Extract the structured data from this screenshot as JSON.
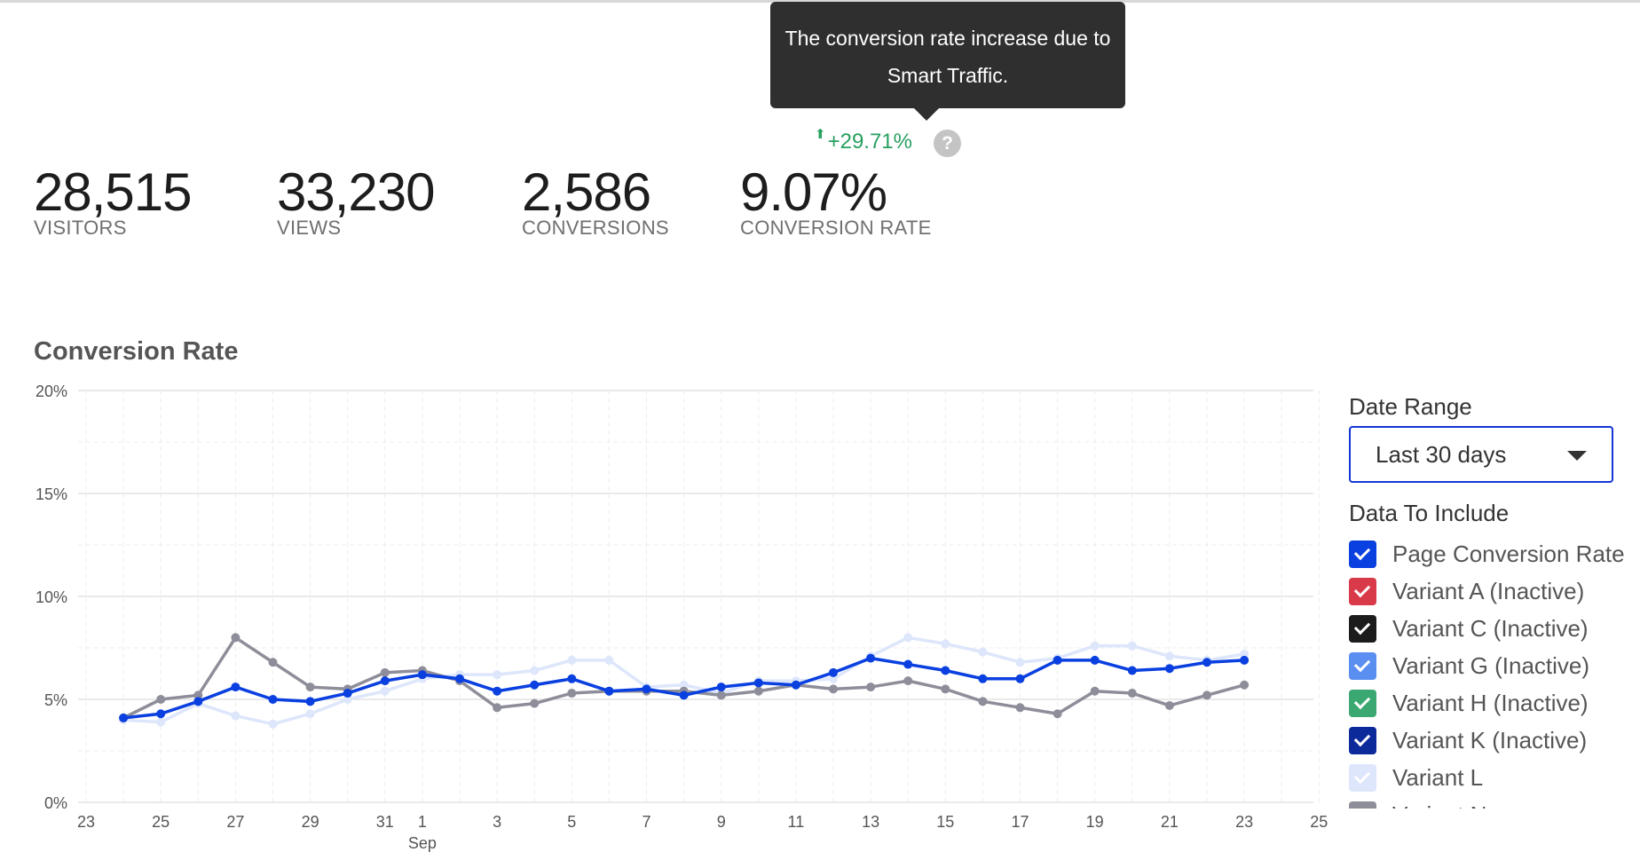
{
  "tooltip": {
    "line1": "The conversion rate increase due to",
    "line2": "Smart Traffic."
  },
  "change": {
    "arrow": "⬆",
    "value": "+29.71%",
    "help": "?"
  },
  "stats": [
    {
      "value": "28,515",
      "label": "VISITORS"
    },
    {
      "value": "33,230",
      "label": "VIEWS"
    },
    {
      "value": "2,586",
      "label": "CONVERSIONS"
    },
    {
      "value": "9.07%",
      "label": "CONVERSION RATE"
    }
  ],
  "chart_title": "Conversion Rate",
  "sidebar": {
    "date_range_label": "Date Range",
    "date_range_value": "Last 30 days",
    "data_label": "Data To Include",
    "items": [
      {
        "label": "Page Conversion Rate",
        "color": "#0a3fe0"
      },
      {
        "label": "Variant A (Inactive)",
        "color": "#d83a4a"
      },
      {
        "label": "Variant C (Inactive)",
        "color": "#1c1c1c"
      },
      {
        "label": "Variant G (Inactive)",
        "color": "#5a8ef0"
      },
      {
        "label": "Variant H (Inactive)",
        "color": "#3aa870"
      },
      {
        "label": "Variant K (Inactive)",
        "color": "#0c2a9a"
      },
      {
        "label": "Variant L",
        "color": "#dde6fb"
      },
      {
        "label": "Variant N",
        "color": "#8e8e9a"
      }
    ]
  },
  "chart_data": {
    "type": "line",
    "title": "Conversion Rate",
    "xlabel": "",
    "ylabel": "",
    "ylim": [
      0,
      20
    ],
    "ytick_labels": [
      "0%",
      "5%",
      "10%",
      "15%",
      "20%"
    ],
    "x_ticks": [
      {
        "day": "23",
        "label": "23"
      },
      {
        "day": "25",
        "label": "25"
      },
      {
        "day": "27",
        "label": "27"
      },
      {
        "day": "29",
        "label": "29"
      },
      {
        "day": "31",
        "label": "31"
      },
      {
        "day": "Sep 1",
        "label": "1",
        "sub": "Sep"
      },
      {
        "day": "Sep 3",
        "label": "3"
      },
      {
        "day": "Sep 5",
        "label": "5"
      },
      {
        "day": "Sep 7",
        "label": "7"
      },
      {
        "day": "Sep 9",
        "label": "9"
      },
      {
        "day": "Sep 11",
        "label": "11"
      },
      {
        "day": "Sep 13",
        "label": "13"
      },
      {
        "day": "Sep 15",
        "label": "15"
      },
      {
        "day": "Sep 17",
        "label": "17"
      },
      {
        "day": "Sep 19",
        "label": "19"
      },
      {
        "day": "Sep 21",
        "label": "21"
      },
      {
        "day": "Sep 23",
        "label": "23"
      },
      {
        "day": "Sep 25",
        "label": "25"
      }
    ],
    "x": [
      "24",
      "25",
      "26",
      "27",
      "28",
      "29",
      "30",
      "31",
      "Sep 1",
      "Sep 2",
      "Sep 3",
      "Sep 4",
      "Sep 5",
      "Sep 6",
      "Sep 7",
      "Sep 8",
      "Sep 9",
      "Sep 10",
      "Sep 11",
      "Sep 12",
      "Sep 13",
      "Sep 14",
      "Sep 15",
      "Sep 16",
      "Sep 17",
      "Sep 18",
      "Sep 19",
      "Sep 20",
      "Sep 21",
      "Sep 22",
      "Sep 23"
    ],
    "series": [
      {
        "name": "Variant L",
        "color": "#dde6fb",
        "values": [
          4.0,
          3.9,
          4.8,
          4.2,
          3.8,
          4.3,
          5.0,
          5.4,
          6.0,
          6.2,
          6.2,
          6.4,
          6.9,
          6.9,
          5.6,
          5.7,
          5.3,
          5.9,
          5.9,
          6.0,
          7.1,
          8.0,
          7.7,
          7.3,
          6.8,
          7.0,
          7.6,
          7.6,
          7.1,
          6.9,
          7.2
        ]
      },
      {
        "name": "Variant N",
        "color": "#8e8e9a",
        "values": [
          4.1,
          5.0,
          5.2,
          8.0,
          6.8,
          5.6,
          5.5,
          6.3,
          6.4,
          5.9,
          4.6,
          4.8,
          5.3,
          5.4,
          5.4,
          5.4,
          5.2,
          5.4,
          5.7,
          5.5,
          5.6,
          5.9,
          5.5,
          4.9,
          4.6,
          4.3,
          5.4,
          5.3,
          4.7,
          5.2,
          5.7
        ]
      },
      {
        "name": "Page Conversion Rate",
        "color": "#0a3fe0",
        "values": [
          4.1,
          4.3,
          4.9,
          5.6,
          5.0,
          4.9,
          5.3,
          5.9,
          6.2,
          6.0,
          5.4,
          5.7,
          6.0,
          5.4,
          5.5,
          5.2,
          5.6,
          5.8,
          5.7,
          6.3,
          7.0,
          6.7,
          6.4,
          6.0,
          6.0,
          6.9,
          6.9,
          6.4,
          6.5,
          6.8,
          6.9
        ]
      }
    ],
    "grid": true,
    "legend": "right"
  }
}
